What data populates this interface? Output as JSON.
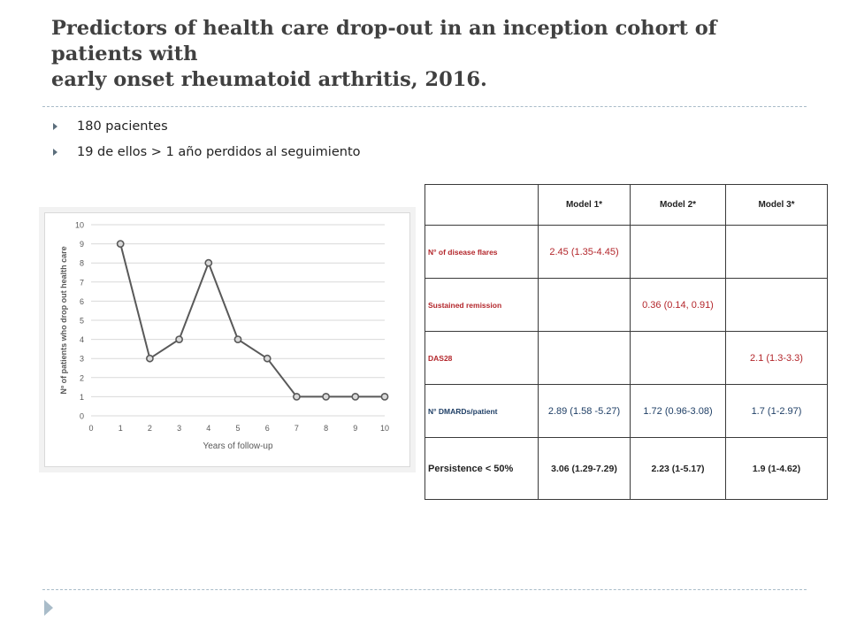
{
  "title": {
    "line1": "Predictors of health care drop-out in an inception cohort of",
    "line2": "patients with",
    "line3": "early onset rheumatoid arthritis, 2016."
  },
  "bullets": [
    "180 pacientes",
    "19 de ellos > 1 año perdidos al seguimiento"
  ],
  "chart_data": {
    "type": "line",
    "x": [
      1,
      2,
      3,
      4,
      5,
      6,
      7,
      8,
      9,
      10
    ],
    "values": [
      9,
      3,
      4,
      8,
      4,
      3,
      1,
      1,
      1,
      1
    ],
    "xlabel": "Years of follow-up",
    "ylabel": "Nº of patients who drop out health care",
    "xlim": [
      0,
      10
    ],
    "ylim": [
      0,
      10
    ],
    "xticks": [
      "0",
      "1",
      "2",
      "3",
      "4",
      "5",
      "6",
      "7",
      "8",
      "9",
      "10"
    ],
    "yticks": [
      "0",
      "1",
      "2",
      "3",
      "4",
      "5",
      "6",
      "7",
      "8",
      "9",
      "10"
    ],
    "grid": "horizontal",
    "colors": {
      "line": "#595959",
      "marker_fill": "#d9d9d9",
      "grid": "#d9d9d9"
    }
  },
  "table": {
    "headers": [
      "",
      "Model 1*",
      "Model 2*",
      "Model 3*"
    ],
    "rows": [
      {
        "label": "N° of disease flares",
        "cells": [
          "2.45 (1.35-4.45)",
          "",
          ""
        ]
      },
      {
        "label": "Sustained remission",
        "cells": [
          "",
          "0.36 (0.14, 0.91)",
          ""
        ]
      },
      {
        "label": "DAS28",
        "cells": [
          "",
          "",
          "2.1 (1.3-3.3)"
        ]
      },
      {
        "label": "N° DMARDs/patient",
        "cells": [
          "2.89 (1.58 -5.27)",
          "1.72 (0.96-3.08)",
          "1.7 (1-2.97)"
        ]
      },
      {
        "label": "Persistence < 50%",
        "cells": [
          "3.06 (1.29-7.29)",
          "2.23 (1-5.17)",
          "1.9 (1-4.62)"
        ]
      }
    ]
  },
  "colors": {
    "accent_red": "#b3262b",
    "accent_blue": "#1f3f66",
    "rule": "#a9bcc9"
  }
}
